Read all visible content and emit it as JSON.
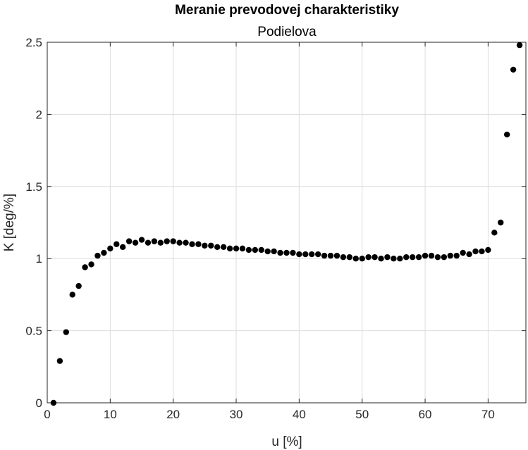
{
  "chart_data": {
    "type": "scatter",
    "title": "Meranie prevodovej charakteristiky",
    "subtitle": "Podielova",
    "xlabel": "u [%]",
    "ylabel": "K [deg/%]",
    "xlim": [
      0,
      76
    ],
    "ylim": [
      0,
      2.5
    ],
    "xticks": [
      0,
      10,
      20,
      30,
      40,
      50,
      60,
      70
    ],
    "xtick_labels": [
      "0",
      "10",
      "20",
      "30",
      "40",
      "50",
      "60",
      "70"
    ],
    "yticks": [
      0,
      0.5,
      1,
      1.5,
      2,
      2.5
    ],
    "ytick_labels": [
      "0",
      "0.5",
      "1",
      "1.5",
      "2",
      "2.5"
    ],
    "grid": true,
    "marker_color": "#000000",
    "series": [
      {
        "x": [
          1,
          2,
          3,
          4,
          5,
          6,
          7,
          8,
          9,
          10,
          11,
          12,
          13,
          14,
          15,
          16,
          17,
          18,
          19,
          20,
          21,
          22,
          23,
          24,
          25,
          26,
          27,
          28,
          29,
          30,
          31,
          32,
          33,
          34,
          35,
          36,
          37,
          38,
          39,
          40,
          41,
          42,
          43,
          44,
          45,
          46,
          47,
          48,
          49,
          50,
          51,
          52,
          53,
          54,
          55,
          56,
          57,
          58,
          59,
          60,
          61,
          62,
          63,
          64,
          65,
          66,
          67,
          68,
          69,
          70,
          71,
          72,
          73,
          74,
          75
        ],
        "y": [
          0.0,
          0.29,
          0.49,
          0.75,
          0.81,
          0.94,
          0.96,
          1.02,
          1.04,
          1.07,
          1.1,
          1.08,
          1.12,
          1.11,
          1.13,
          1.11,
          1.12,
          1.11,
          1.12,
          1.12,
          1.11,
          1.11,
          1.1,
          1.1,
          1.09,
          1.09,
          1.08,
          1.08,
          1.07,
          1.07,
          1.07,
          1.06,
          1.06,
          1.06,
          1.05,
          1.05,
          1.04,
          1.04,
          1.04,
          1.03,
          1.03,
          1.03,
          1.03,
          1.02,
          1.02,
          1.02,
          1.01,
          1.01,
          1.0,
          1.0,
          1.01,
          1.01,
          1.0,
          1.01,
          1.0,
          1.0,
          1.01,
          1.01,
          1.01,
          1.02,
          1.02,
          1.01,
          1.01,
          1.02,
          1.02,
          1.04,
          1.03,
          1.05,
          1.05,
          1.06,
          1.18,
          1.25,
          1.86,
          2.31,
          2.48
        ]
      }
    ]
  }
}
